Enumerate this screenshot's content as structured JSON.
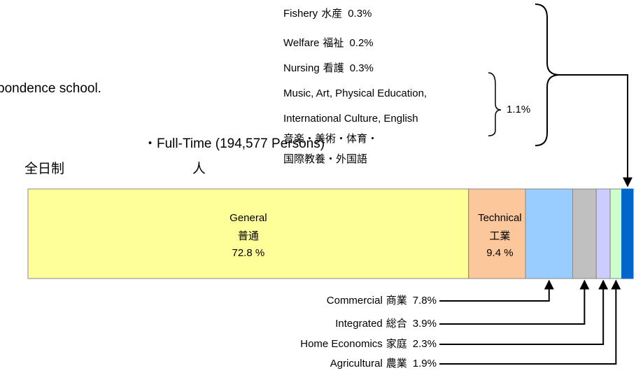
{
  "chart_data": {
    "type": "stacked-bar",
    "note": "pondence school.",
    "title": "・Full-Time (194,577 Persons)",
    "subtitle": "全日制",
    "unit_label": "人",
    "series": [
      {
        "name": "General",
        "name_ja": "普通",
        "values": [
          72.8
        ],
        "value_labels": [
          "72.8 %"
        ],
        "color": "#ffff99"
      },
      {
        "name": "Technical",
        "name_ja": "工業",
        "values": [
          9.4
        ],
        "value_labels": [
          "9.4 %"
        ],
        "color": "#fcc79a"
      },
      {
        "name": "Commercial",
        "name_ja": "商業",
        "values": [
          7.8
        ],
        "value_labels": [
          "7.8%"
        ],
        "color": "#99ccff"
      },
      {
        "name": "Integrated",
        "name_ja": "総合",
        "values": [
          3.9
        ],
        "value_labels": [
          "3.9%"
        ],
        "color": "#c0c0c0"
      },
      {
        "name": "Home Economics",
        "name_ja": "家庭",
        "values": [
          2.3
        ],
        "value_labels": [
          "2.3%"
        ],
        "color": "#ccccff"
      },
      {
        "name": "Agricultural",
        "name_ja": "農業",
        "values": [
          1.9
        ],
        "value_labels": [
          "1.9%"
        ],
        "color": "#ccffcc"
      },
      {
        "name": "Fishery",
        "name_ja": "水産",
        "values": [
          0.3
        ],
        "value_labels": [
          "0.3%"
        ],
        "color": "#0066cc"
      },
      {
        "name": "Welfare",
        "name_ja": "福祉",
        "values": [
          0.2
        ],
        "value_labels": [
          "0.2%"
        ],
        "color": "#0066cc"
      },
      {
        "name": "Nursing",
        "name_ja": "看護",
        "values": [
          0.3
        ],
        "value_labels": [
          "0.3%"
        ],
        "color": "#0066cc"
      },
      {
        "name_lines": [
          "Music, Art, Physical Education,",
          "International Culture, English"
        ],
        "name_ja_lines": [
          "音楽・美術・体育・",
          "国際教養・外国語"
        ],
        "values": [
          1.1
        ],
        "value_labels": [
          "1.1%"
        ],
        "color": "#0066cc"
      }
    ],
    "xlim": [
      0,
      100
    ]
  }
}
